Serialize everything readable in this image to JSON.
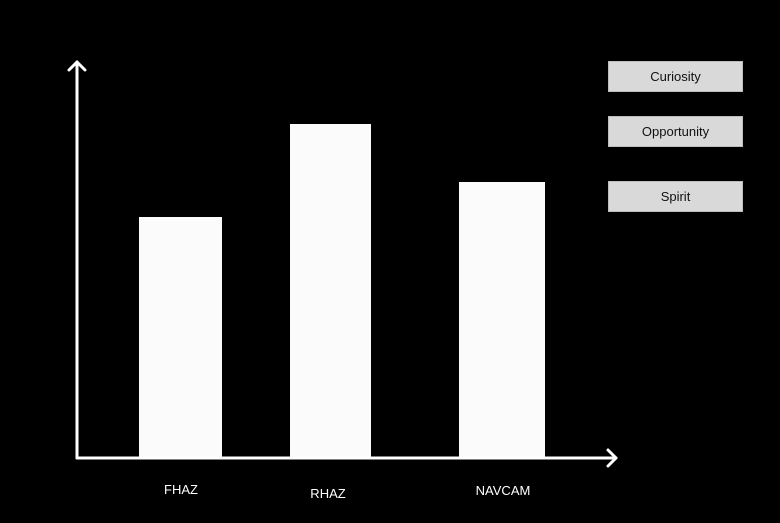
{
  "rovers": {
    "items": [
      {
        "label": "Curiosity"
      },
      {
        "label": "Opportunity"
      },
      {
        "label": "Spirit"
      }
    ]
  },
  "chart_data": {
    "type": "bar",
    "categories": [
      "FHAZ",
      "RHAZ",
      "NAVCAM"
    ],
    "values": [
      241,
      334,
      276
    ],
    "ylim": [
      0,
      400
    ],
    "grid": false,
    "title": "",
    "xlabel": "",
    "ylabel": "",
    "colors": {
      "background": "#000000",
      "bar": "#fbfbfb",
      "axis": "#ffffff",
      "button_bg": "#d9d9d9",
      "button_text": "#111111"
    }
  }
}
